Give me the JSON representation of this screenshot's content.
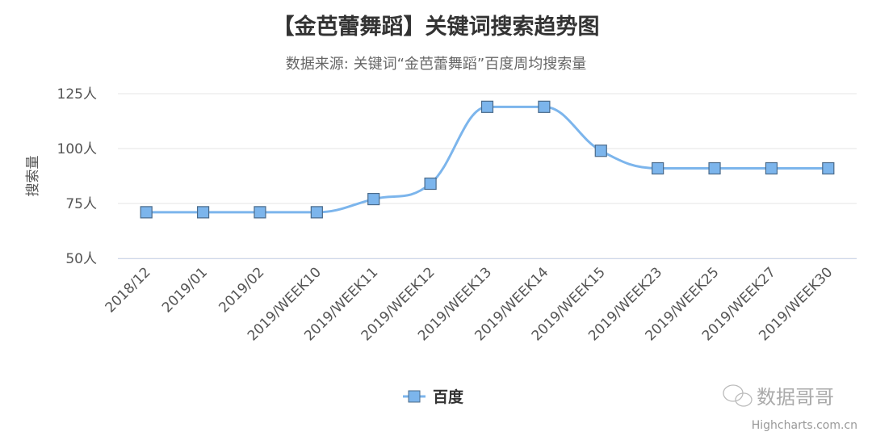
{
  "chart_data": {
    "type": "line",
    "title": "【金芭蕾舞蹈】关键词搜索趋势图",
    "subtitle": "数据来源: 关键词“金芭蕾舞蹈”百度周均搜索量",
    "ylabel": "搜索量",
    "xlabel": "",
    "ylim": [
      50,
      125
    ],
    "yticks": [
      50,
      75,
      100,
      125
    ],
    "ytick_suffix": "人",
    "ytick_labels": [
      "50人",
      "75人",
      "100人",
      "125人"
    ],
    "grid": true,
    "smooth": true,
    "legend_position": "bottom",
    "categories": [
      "2018/12",
      "2019/01",
      "2019/02",
      "2019/WEEK10",
      "2019/WEEK11",
      "2019/WEEK12",
      "2019/WEEK13",
      "2019/WEEK14",
      "2019/WEEK15",
      "2019/WEEK23",
      "2019/WEEK25",
      "2019/WEEK27",
      "2019/WEEK30"
    ],
    "series": [
      {
        "name": "百度",
        "color": "#7cb5ec",
        "marker": "square",
        "values": [
          71,
          71,
          71,
          71,
          77,
          84,
          119,
          119,
          99,
          91,
          91,
          91,
          91
        ]
      }
    ]
  },
  "watermark": "数据哥哥",
  "credits": "Highcharts.com.cn"
}
